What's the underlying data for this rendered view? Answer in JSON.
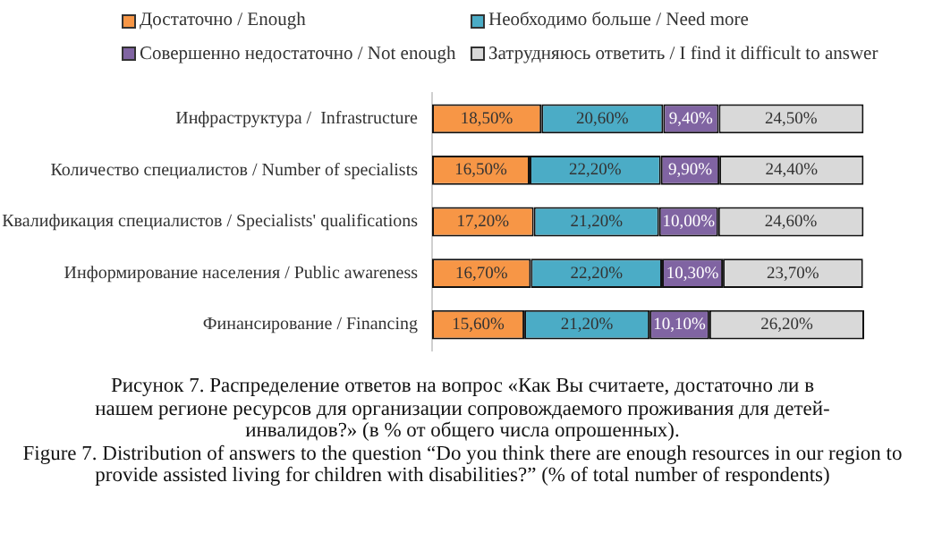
{
  "chart_data": {
    "type": "bar",
    "orientation": "horizontal",
    "stacked": true,
    "categories": [
      "Инфраструктура /  Infrastructure",
      "Количество специалистов / Number of specialists",
      "Квалификация специалистов / Specialists' qualifications",
      "Информирование населения / Public awareness",
      "Финансирование / Financing"
    ],
    "series": [
      {
        "name": "Достаточно / Enough",
        "color": "#f79646",
        "values": [
          18.5,
          16.5,
          17.2,
          16.7,
          15.6
        ],
        "value_labels": [
          "18,50%",
          "16,50%",
          "17,20%",
          "16,70%",
          "15,60%"
        ]
      },
      {
        "name": "Необходимо больше /  Need more",
        "color": "#4bacc6",
        "values": [
          20.6,
          22.2,
          21.2,
          22.2,
          21.2
        ],
        "value_labels": [
          "20,60%",
          "22,20%",
          "21,20%",
          "22,20%",
          "21,20%"
        ]
      },
      {
        "name": "Совершенно недостаточно / Not enough",
        "color": "#8064a2",
        "values": [
          9.4,
          9.9,
          10.0,
          10.3,
          10.1
        ],
        "value_labels": [
          "9,40%",
          "9,90%",
          "10,00%",
          "10,30%",
          "10,10%"
        ]
      },
      {
        "name": "Затрудняюсь ответить / I find it difficult to answer",
        "color": "#d9d9d9",
        "values": [
          24.5,
          24.4,
          24.6,
          23.7,
          26.2
        ],
        "value_labels": [
          "24,50%",
          "24,40%",
          "24,60%",
          "23,70%",
          "26,20%"
        ]
      }
    ],
    "xlim": [
      0,
      73.1
    ],
    "tick_labels": "y",
    "legend": "top",
    "annotations": [
      "Рисунок 7. Распределение ответов на вопрос «Как Вы считаете, достаточно ли в нашем регионе ресурсов для организации сопровождаемого проживания для детей-инвалидов?» (в % от общего числа опрошенных).",
      "Figure 7. Distribution of answers to the question “Do you think there are enough resources in our region to provide assisted living for children with disabilities?” (% of total number of respondents)"
    ]
  }
}
